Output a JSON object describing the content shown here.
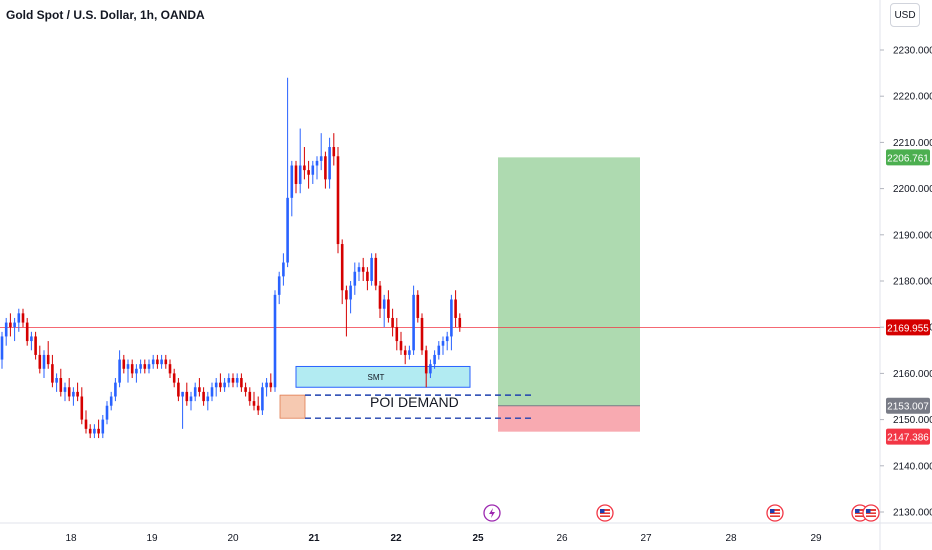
{
  "header": {
    "title": "Gold Spot / U.S. Dollar, 1h, OANDA",
    "currency_button": "USD"
  },
  "chart_data": {
    "type": "candlestick",
    "title": "Gold Spot / U.S. Dollar, 1h, OANDA",
    "ylim": [
      2125,
      2237
    ],
    "y_ticks": [
      "2130.000",
      "2140.000",
      "2150.000",
      "2160.000",
      "2170.000",
      "2180.000",
      "2190.000",
      "2200.000",
      "2210.000",
      "2220.000",
      "2230.000"
    ],
    "x_ticks": [
      "18",
      "19",
      "20",
      "21",
      "22",
      "25",
      "26",
      "27",
      "28",
      "29"
    ],
    "colors": {
      "up": "#2962ff",
      "down": "#d50000",
      "price_line": "#f23645",
      "target_zone": "#a5d6a7",
      "stop_zone": "#f7a1a8",
      "smt_zone": "#b2ebf2",
      "poi_zone": "#f6c9b1"
    },
    "price_badges": [
      {
        "label": "2206.761",
        "value": 2206.761,
        "color": "#4caf50"
      },
      {
        "label": "2169.955",
        "value": 2169.955,
        "color": "#d50000"
      },
      {
        "label": "2153.007",
        "value": 2153.007,
        "color": "#787b86"
      },
      {
        "label": "2147.386",
        "value": 2147.386,
        "color": "#f23645"
      }
    ],
    "current_price": 2169.955,
    "position": {
      "entry": 2153.007,
      "target": 2206.761,
      "stop": 2147.386
    },
    "annotations": [
      {
        "text": "SMT",
        "y_low": 2157,
        "y_high": 2161.5
      },
      {
        "text": "POI DEMAND",
        "y_low": 2150.3,
        "y_high": 2155.3
      }
    ],
    "events": [
      "lightning",
      "us-flag",
      "us-flag",
      "us-flag",
      "us-flag"
    ],
    "ohlc": [
      [
        2163,
        2169,
        2161,
        2168
      ],
      [
        2168,
        2172,
        2166,
        2171
      ],
      [
        2171,
        2173,
        2168,
        2170
      ],
      [
        2170,
        2172,
        2167,
        2171
      ],
      [
        2171,
        2174,
        2169,
        2173
      ],
      [
        2173,
        2174,
        2170,
        2171
      ],
      [
        2171,
        2172,
        2166,
        2167
      ],
      [
        2167,
        2169,
        2165,
        2168
      ],
      [
        2168,
        2169,
        2163,
        2164
      ],
      [
        2164,
        2166,
        2160,
        2161
      ],
      [
        2161,
        2165,
        2159,
        2164
      ],
      [
        2164,
        2167,
        2161,
        2162
      ],
      [
        2162,
        2164,
        2157,
        2158
      ],
      [
        2158,
        2160,
        2156,
        2159
      ],
      [
        2159,
        2161,
        2155,
        2156
      ],
      [
        2156,
        2158,
        2154,
        2157
      ],
      [
        2157,
        2159,
        2154,
        2155
      ],
      [
        2155,
        2157,
        2153,
        2156
      ],
      [
        2156,
        2158,
        2154,
        2155
      ],
      [
        2155,
        2157,
        2149,
        2150
      ],
      [
        2150,
        2152,
        2147,
        2148
      ],
      [
        2148,
        2149,
        2146,
        2147
      ],
      [
        2147,
        2149,
        2146,
        2148
      ],
      [
        2148,
        2150,
        2146,
        2147
      ],
      [
        2147,
        2151,
        2146,
        2150
      ],
      [
        2150,
        2154,
        2149,
        2153
      ],
      [
        2153,
        2156,
        2152,
        2155
      ],
      [
        2155,
        2159,
        2154,
        2158
      ],
      [
        2158,
        2165,
        2157,
        2163
      ],
      [
        2163,
        2164,
        2160,
        2161
      ],
      [
        2161,
        2163,
        2158,
        2162
      ],
      [
        2162,
        2163,
        2159,
        2160
      ],
      [
        2160,
        2162,
        2158,
        2161
      ],
      [
        2161,
        2163,
        2160,
        2162
      ],
      [
        2162,
        2163,
        2160,
        2161
      ],
      [
        2161,
        2163,
        2160,
        2162
      ],
      [
        2162,
        2164,
        2161,
        2163
      ],
      [
        2163,
        2164,
        2161,
        2162
      ],
      [
        2162,
        2164,
        2161,
        2163
      ],
      [
        2163,
        2164,
        2161,
        2162
      ],
      [
        2162,
        2163,
        2159,
        2160
      ],
      [
        2160,
        2161,
        2157,
        2158
      ],
      [
        2158,
        2159,
        2154,
        2155
      ],
      [
        2155,
        2156,
        2148,
        2156
      ],
      [
        2156,
        2158,
        2153,
        2154
      ],
      [
        2154,
        2156,
        2152,
        2155
      ],
      [
        2155,
        2158,
        2154,
        2157
      ],
      [
        2157,
        2159,
        2155,
        2156
      ],
      [
        2156,
        2157,
        2153,
        2154
      ],
      [
        2154,
        2156,
        2152,
        2155
      ],
      [
        2155,
        2158,
        2154,
        2157
      ],
      [
        2157,
        2159,
        2155,
        2158
      ],
      [
        2158,
        2160,
        2156,
        2157
      ],
      [
        2157,
        2159,
        2156,
        2158
      ],
      [
        2158,
        2160,
        2157,
        2159
      ],
      [
        2159,
        2160,
        2157,
        2158
      ],
      [
        2158,
        2160,
        2157,
        2159
      ],
      [
        2159,
        2160,
        2156,
        2157
      ],
      [
        2157,
        2158,
        2155,
        2156
      ],
      [
        2156,
        2157,
        2153,
        2154
      ],
      [
        2154,
        2156,
        2152,
        2153
      ],
      [
        2153,
        2155,
        2151,
        2152
      ],
      [
        2152,
        2158,
        2151,
        2157
      ],
      [
        2157,
        2159,
        2155,
        2158
      ],
      [
        2158,
        2160,
        2156,
        2157
      ],
      [
        2157,
        2178,
        2156,
        2177
      ],
      [
        2177,
        2182,
        2175,
        2181
      ],
      [
        2181,
        2186,
        2179,
        2184
      ],
      [
        2184,
        2224,
        2183,
        2198
      ],
      [
        2198,
        2206,
        2194,
        2205
      ],
      [
        2205,
        2206,
        2199,
        2201
      ],
      [
        2201,
        2213,
        2199,
        2205
      ],
      [
        2205,
        2209,
        2202,
        2204
      ],
      [
        2204,
        2206,
        2200,
        2203
      ],
      [
        2203,
        2206,
        2201,
        2205
      ],
      [
        2205,
        2207,
        2202,
        2206
      ],
      [
        2206,
        2212,
        2204,
        2207
      ],
      [
        2207,
        2208,
        2200,
        2202
      ],
      [
        2202,
        2211,
        2200,
        2209
      ],
      [
        2209,
        2212,
        2205,
        2207
      ],
      [
        2207,
        2209,
        2186,
        2188
      ],
      [
        2188,
        2189,
        2175,
        2178
      ],
      [
        2178,
        2179,
        2168,
        2176
      ],
      [
        2176,
        2180,
        2173,
        2179
      ],
      [
        2179,
        2184,
        2177,
        2182
      ],
      [
        2182,
        2184,
        2180,
        2183
      ],
      [
        2183,
        2185,
        2180,
        2182
      ],
      [
        2182,
        2183,
        2178,
        2180
      ],
      [
        2180,
        2186,
        2179,
        2185
      ],
      [
        2185,
        2186,
        2178,
        2179
      ],
      [
        2179,
        2180,
        2172,
        2174
      ],
      [
        2174,
        2177,
        2170,
        2176
      ],
      [
        2176,
        2178,
        2171,
        2172
      ],
      [
        2172,
        2174,
        2168,
        2170
      ],
      [
        2170,
        2172,
        2165,
        2167
      ],
      [
        2167,
        2169,
        2164,
        2165
      ],
      [
        2165,
        2166,
        2162,
        2164
      ],
      [
        2164,
        2166,
        2163,
        2165
      ],
      [
        2165,
        2179,
        2164,
        2177
      ],
      [
        2177,
        2178,
        2171,
        2172
      ],
      [
        2172,
        2173,
        2164,
        2165
      ],
      [
        2165,
        2166,
        2157,
        2160
      ],
      [
        2160,
        2163,
        2159,
        2162
      ],
      [
        2162,
        2165,
        2161,
        2164
      ],
      [
        2164,
        2167,
        2163,
        2166
      ],
      [
        2166,
        2168,
        2164,
        2167
      ],
      [
        2167,
        2169,
        2165,
        2168
      ],
      [
        2168,
        2177,
        2165,
        2176
      ],
      [
        2176,
        2178,
        2170,
        2172
      ],
      [
        2172,
        2173,
        2169,
        2170
      ]
    ]
  }
}
